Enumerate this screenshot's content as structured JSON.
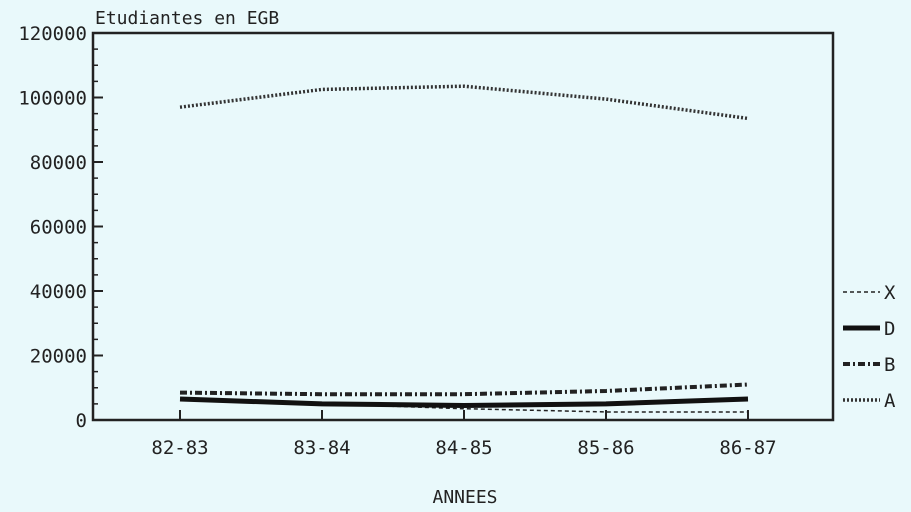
{
  "chart_data": {
    "type": "line",
    "title": "Etudiantes en EGB",
    "xlabel": "ANNEES",
    "ylabel": "",
    "categories": [
      "82-83",
      "83-84",
      "84-85",
      "85-86",
      "86-87"
    ],
    "ylim": [
      0,
      120000
    ],
    "yticks": [
      "0",
      "20000",
      "40000",
      "60000",
      "80000",
      "100000",
      "120000"
    ],
    "legend_position": "right",
    "series": [
      {
        "name": "X",
        "values": [
          6500,
          5000,
          3500,
          2500,
          2500
        ],
        "color": "#222222",
        "style": "dashed"
      },
      {
        "name": "D",
        "values": [
          6500,
          5000,
          4500,
          5000,
          6500
        ],
        "color": "#111111",
        "style": "thick"
      },
      {
        "name": "B",
        "values": [
          8500,
          8000,
          8000,
          9000,
          11000
        ],
        "color": "#222222",
        "style": "dashdot"
      },
      {
        "name": "A",
        "values": [
          97000,
          102500,
          103500,
          99500,
          93500
        ],
        "color": "#333333",
        "style": "dotted"
      }
    ]
  }
}
